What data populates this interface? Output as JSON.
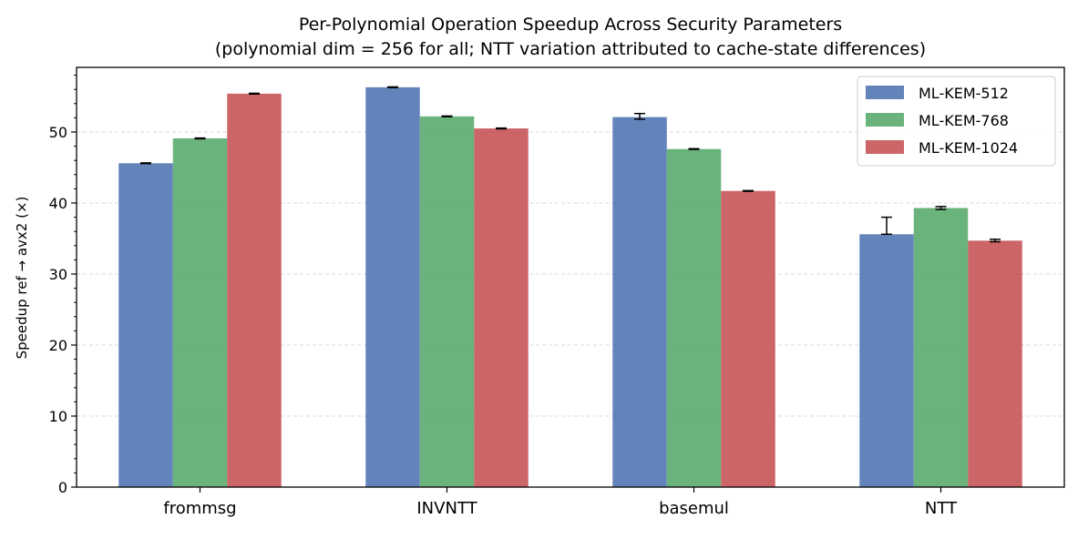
{
  "chart_data": {
    "type": "bar",
    "title": "Per-Polynomial Operation Speedup Across Security Parameters",
    "subtitle": "(polynomial dim = 256 for all; NTT variation attributed to cache-state differences)",
    "xlabel": "",
    "ylabel": "Speedup ref → avx2 (×)",
    "ylim": [
      0,
      59.1
    ],
    "yticks": [
      0,
      10,
      20,
      30,
      40,
      50
    ],
    "grid": true,
    "legend": "top-right",
    "categories": [
      "frommsg",
      "INVNTT",
      "basemul",
      "NTT"
    ],
    "series": [
      {
        "name": "ML-KEM-512",
        "color": "#4c72b0",
        "values": [
          45.6,
          56.3,
          52.1,
          35.6
        ],
        "err_low": [
          45.55,
          56.25,
          51.8,
          35.6
        ],
        "err_high": [
          45.65,
          56.35,
          52.6,
          38.0
        ]
      },
      {
        "name": "ML-KEM-768",
        "color": "#55a868",
        "values": [
          49.1,
          52.2,
          47.6,
          39.3
        ],
        "err_low": [
          49.05,
          52.15,
          47.55,
          39.1
        ],
        "err_high": [
          49.15,
          52.25,
          47.65,
          39.5
        ]
      },
      {
        "name": "ML-KEM-1024",
        "color": "#c44e52",
        "values": [
          55.4,
          50.5,
          41.7,
          34.7
        ],
        "err_low": [
          55.35,
          50.45,
          41.65,
          34.55
        ],
        "err_high": [
          55.45,
          50.55,
          41.75,
          34.9
        ]
      }
    ]
  }
}
